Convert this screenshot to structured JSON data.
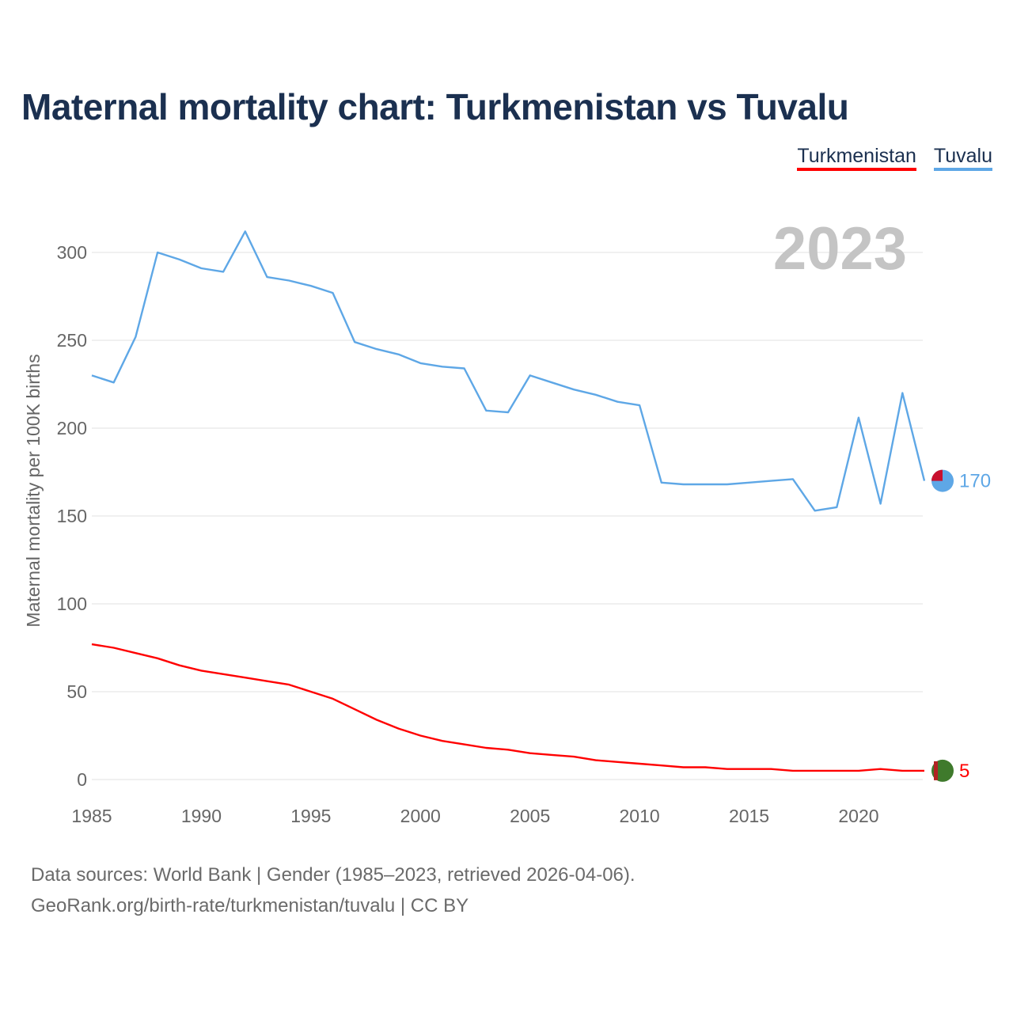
{
  "title": "Maternal mortality chart: Turkmenistan vs Tuvalu",
  "legend": {
    "turkmenistan": "Turkmenistan",
    "tuvalu": "Tuvalu"
  },
  "year_label": "2023",
  "footer": {
    "line1": "Data sources: World Bank | Gender (1985–2023, retrieved 2026-04-06).",
    "line2": "GeoRank.org/birth-rate/turkmenistan/tuvalu | CC BY"
  },
  "colors": {
    "turkmenistan": "#ff0000",
    "tuvalu": "#5ea7e6",
    "title": "#1b3050",
    "grid": "#e6e6e6",
    "axis_text": "#666666",
    "year_watermark": "#c4c4c4"
  },
  "chart_data": {
    "type": "line",
    "title": "Maternal mortality chart: Turkmenistan vs Tuvalu",
    "xlabel": "",
    "ylabel": "Maternal mortality per 100K births",
    "xlim": [
      1985,
      2023
    ],
    "ylim": [
      0,
      320
    ],
    "x_ticks": [
      1985,
      1990,
      1995,
      2000,
      2005,
      2010,
      2015,
      2020
    ],
    "y_ticks": [
      0,
      50,
      100,
      150,
      200,
      250,
      300
    ],
    "grid": true,
    "legend_position": "top-right",
    "x": [
      1985,
      1986,
      1987,
      1988,
      1989,
      1990,
      1991,
      1992,
      1993,
      1994,
      1995,
      1996,
      1997,
      1998,
      1999,
      2000,
      2001,
      2002,
      2003,
      2004,
      2005,
      2006,
      2007,
      2008,
      2009,
      2010,
      2011,
      2012,
      2013,
      2014,
      2015,
      2016,
      2017,
      2018,
      2019,
      2020,
      2021,
      2022,
      2023
    ],
    "series": [
      {
        "name": "Tuvalu",
        "end_label": "170",
        "values": [
          230,
          226,
          252,
          300,
          296,
          291,
          289,
          312,
          286,
          284,
          281,
          277,
          249,
          245,
          242,
          237,
          235,
          234,
          210,
          209,
          230,
          226,
          222,
          219,
          215,
          213,
          169,
          168,
          168,
          168,
          169,
          170,
          171,
          153,
          155,
          206,
          157,
          220,
          170
        ]
      },
      {
        "name": "Turkmenistan",
        "end_label": "5",
        "values": [
          77,
          75,
          72,
          69,
          65,
          62,
          60,
          58,
          56,
          54,
          50,
          46,
          40,
          34,
          29,
          25,
          22,
          20,
          18,
          17,
          15,
          14,
          13,
          11,
          10,
          9,
          8,
          7,
          7,
          6,
          6,
          6,
          5,
          5,
          5,
          5,
          6,
          5,
          5
        ]
      }
    ]
  }
}
